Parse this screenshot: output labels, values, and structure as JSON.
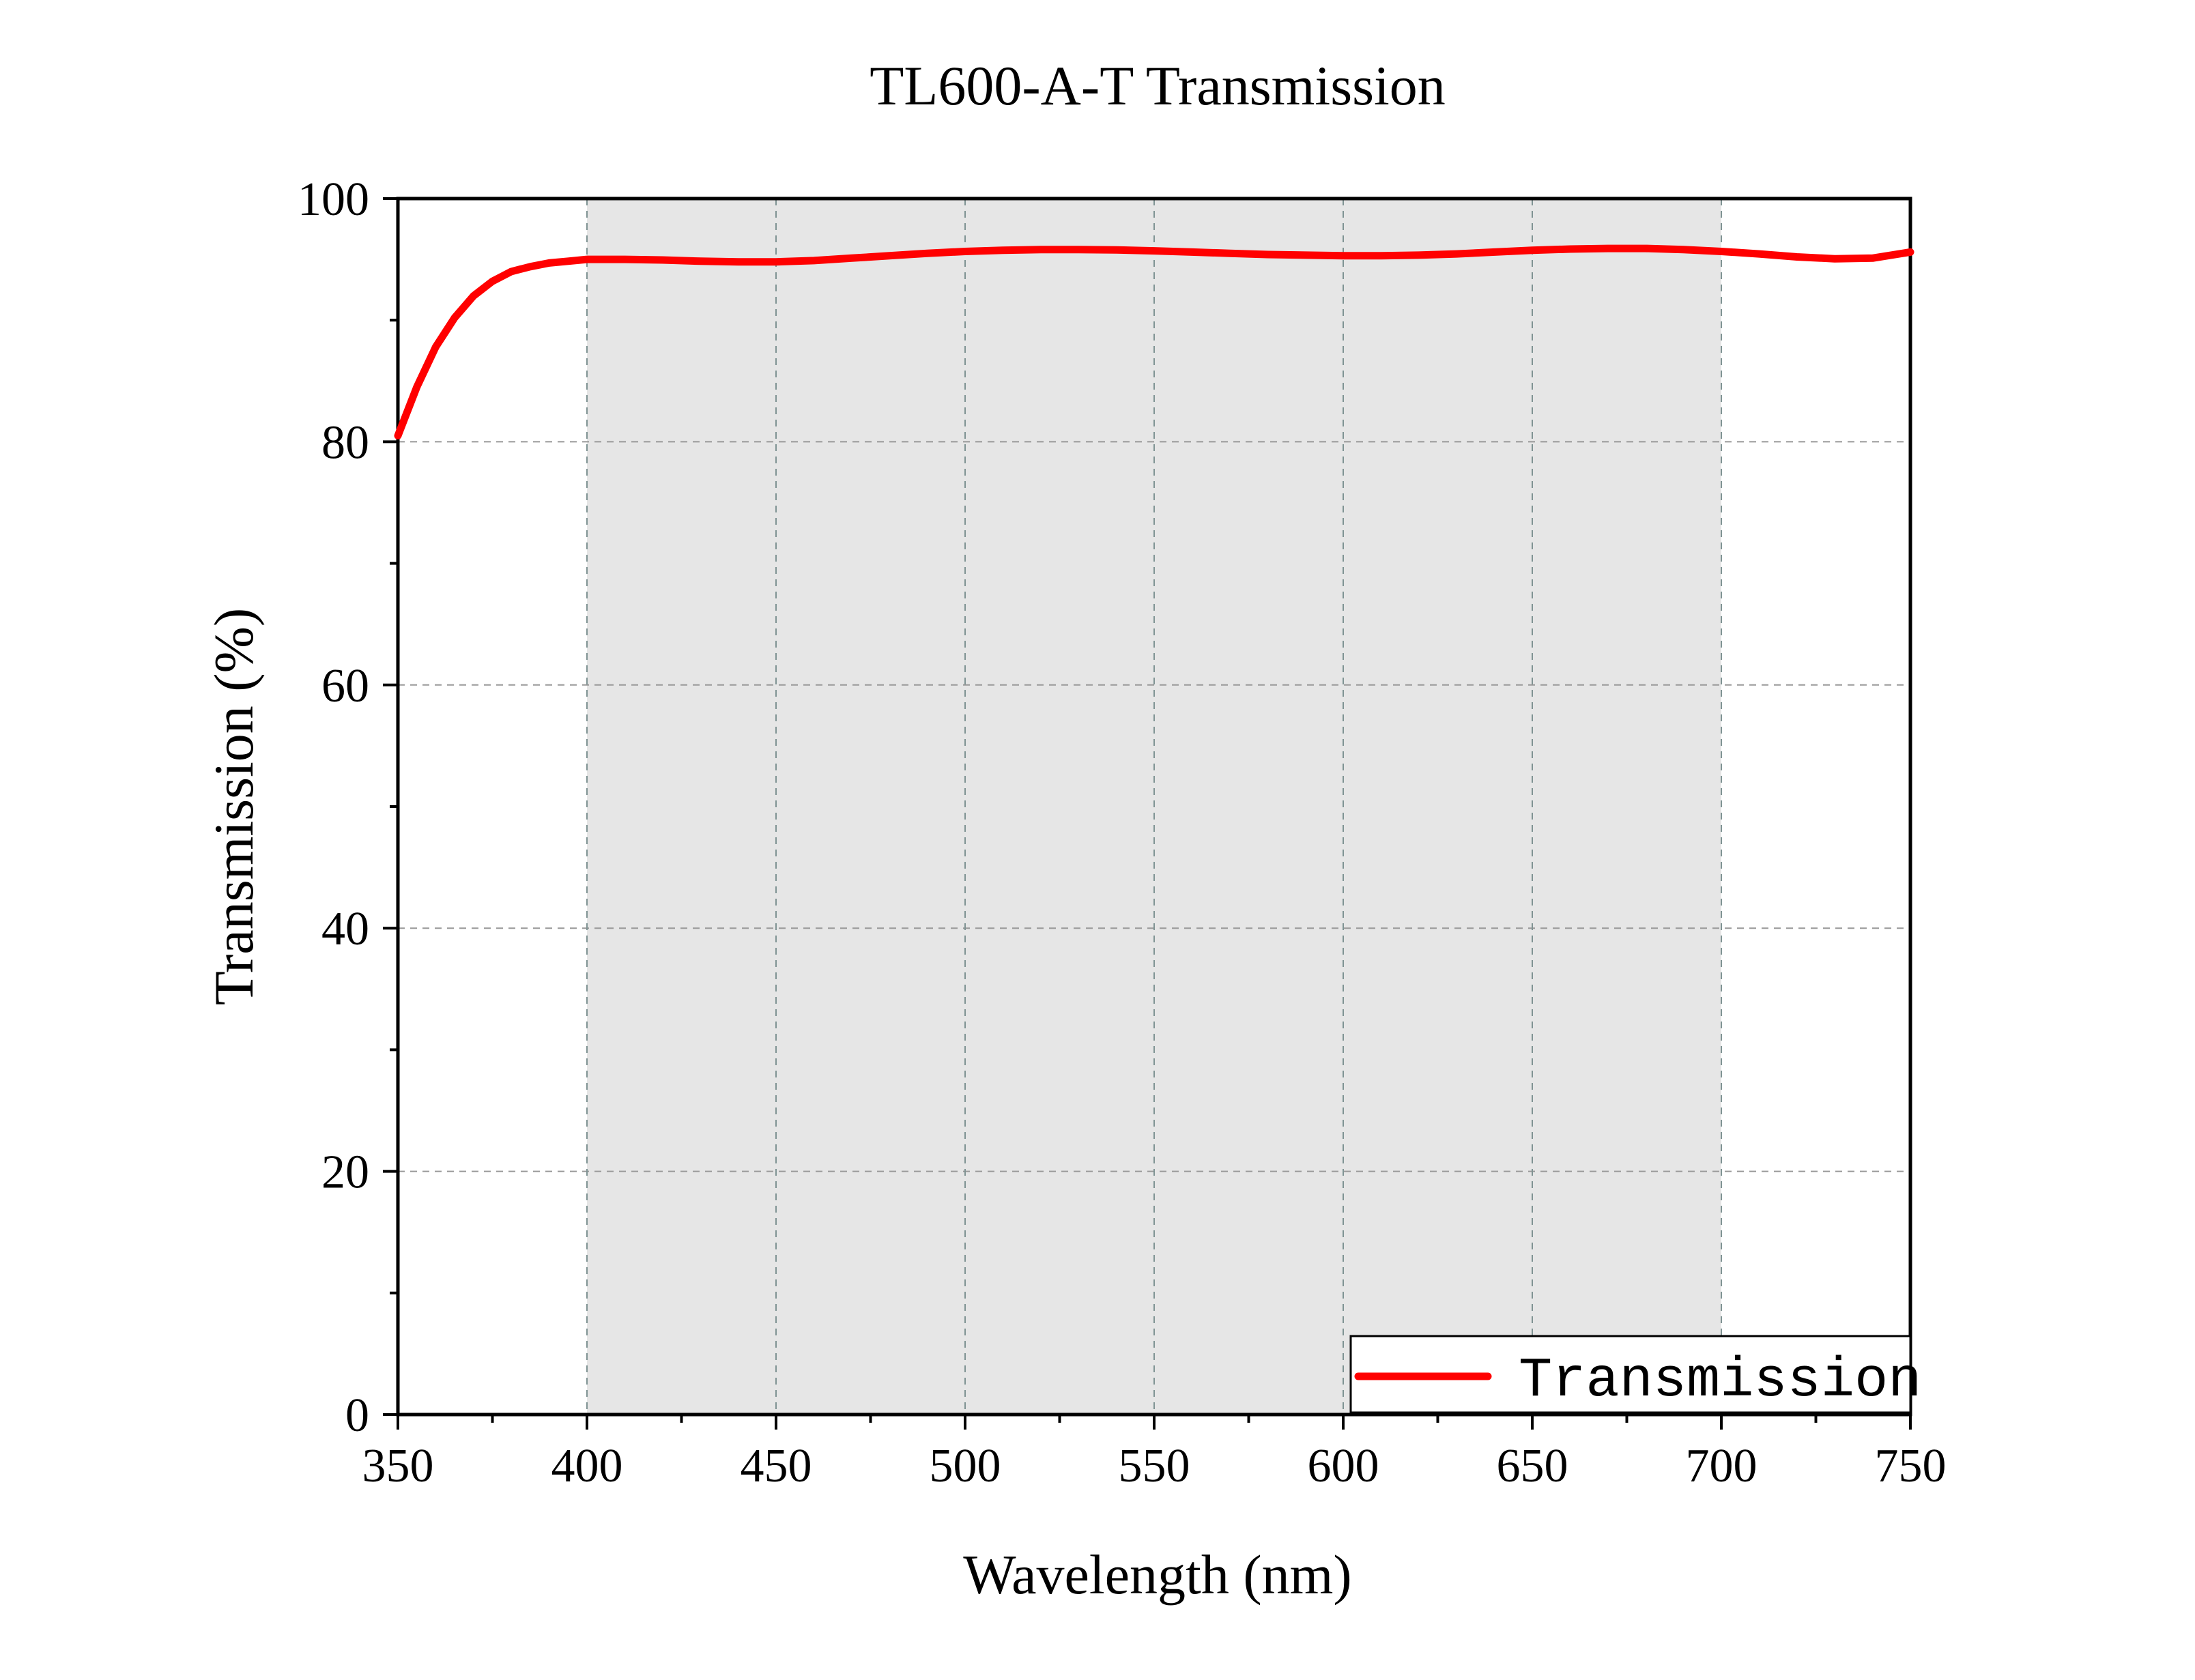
{
  "chart_data": {
    "type": "line",
    "title": "TL600-A-T Transmission",
    "xlabel": "Wavelength (nm)",
    "ylabel": "Transmission (%)",
    "xlim": [
      350,
      750
    ],
    "ylim": [
      0,
      100
    ],
    "x_ticks": [
      350,
      400,
      450,
      500,
      550,
      600,
      650,
      700,
      750
    ],
    "x_tick_labels": [
      "350",
      "400",
      "450",
      "500",
      "550",
      "600",
      "650",
      "700",
      "750"
    ],
    "y_ticks": [
      0,
      20,
      40,
      60,
      80,
      100
    ],
    "y_tick_labels": [
      "0",
      "20",
      "40",
      "60",
      "80",
      "100"
    ],
    "grid": true,
    "shaded_band": {
      "x_start": 400,
      "x_end": 700,
      "color": "#e6e6e6"
    },
    "legend": {
      "position": "bottom-right"
    },
    "series": [
      {
        "name": "Transmission",
        "color": "#ff0000",
        "x": [
          350,
          355,
          360,
          365,
          370,
          375,
          380,
          385,
          390,
          395,
          400,
          410,
          420,
          430,
          440,
          450,
          460,
          470,
          480,
          490,
          500,
          510,
          520,
          530,
          540,
          550,
          560,
          570,
          580,
          590,
          600,
          610,
          620,
          630,
          640,
          650,
          660,
          670,
          680,
          690,
          700,
          710,
          720,
          730,
          740,
          750
        ],
        "y": [
          80.5,
          84.5,
          87.8,
          90.2,
          92.0,
          93.2,
          94.0,
          94.4,
          94.7,
          94.85,
          95.0,
          95.0,
          94.95,
          94.85,
          94.8,
          94.8,
          94.9,
          95.1,
          95.3,
          95.5,
          95.65,
          95.75,
          95.8,
          95.8,
          95.78,
          95.7,
          95.6,
          95.5,
          95.4,
          95.35,
          95.3,
          95.3,
          95.35,
          95.45,
          95.6,
          95.75,
          95.85,
          95.9,
          95.9,
          95.8,
          95.65,
          95.45,
          95.2,
          95.05,
          95.1,
          95.6
        ]
      }
    ]
  },
  "colors": {
    "axis": "#000000",
    "grid": "#999999",
    "grid_band": "#7f9393"
  }
}
